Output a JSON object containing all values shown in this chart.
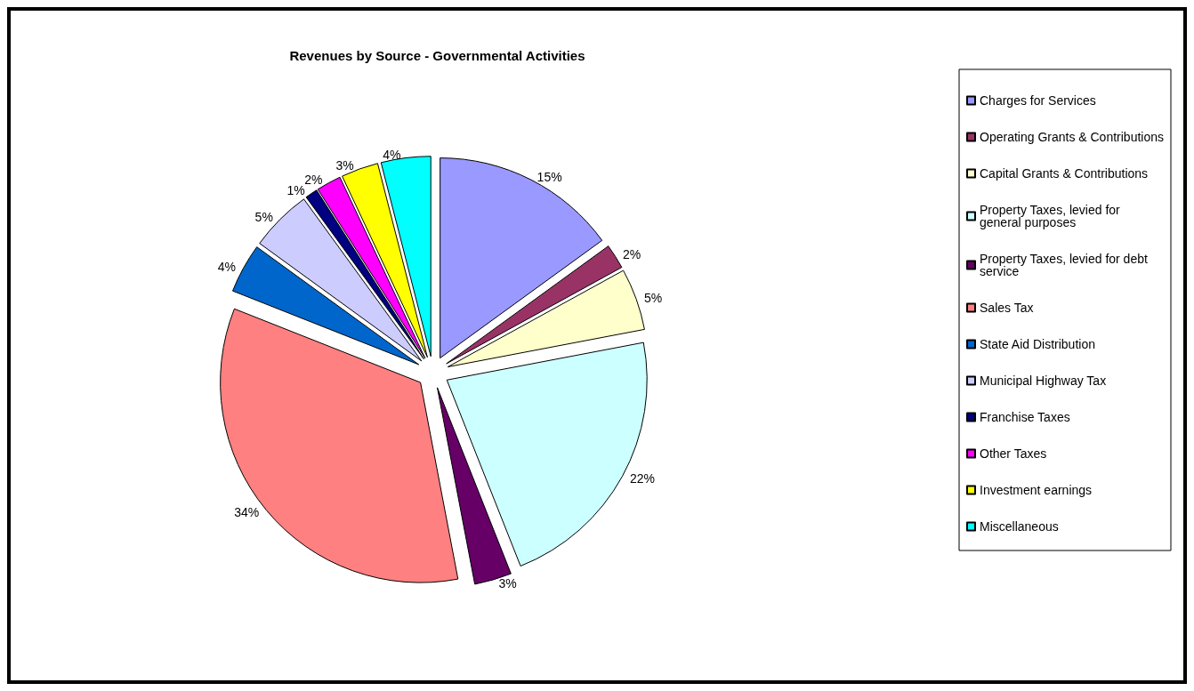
{
  "chart_data": {
    "type": "pie",
    "title": "Revenues by Source - Governmental Activities",
    "categories": [
      "Charges for Services",
      "Operating Grants & Contributions",
      "Capital Grants & Contributions",
      "Property Taxes, levied for general purposes",
      "Property Taxes, levied for debt service",
      "Sales Tax",
      "State Aid Distribution",
      "Municipal Highway Tax",
      "Franchise Taxes",
      "Other Taxes",
      "Investment earnings",
      "Miscellaneous"
    ],
    "values": [
      15,
      2,
      5,
      22,
      3,
      34,
      4,
      5,
      1,
      2,
      3,
      4
    ],
    "value_labels": [
      "15%",
      "2%",
      "5%",
      "22%",
      "3%",
      "34%",
      "4%",
      "5%",
      "1%",
      "2%",
      "3%",
      "4%"
    ],
    "colors": [
      "#9999ff",
      "#993366",
      "#ffffcc",
      "#ccffff",
      "#660066",
      "#ff8080",
      "#0066cc",
      "#ccccff",
      "#000080",
      "#ff00ff",
      "#ffff00",
      "#00ffff"
    ],
    "legend": "right"
  }
}
